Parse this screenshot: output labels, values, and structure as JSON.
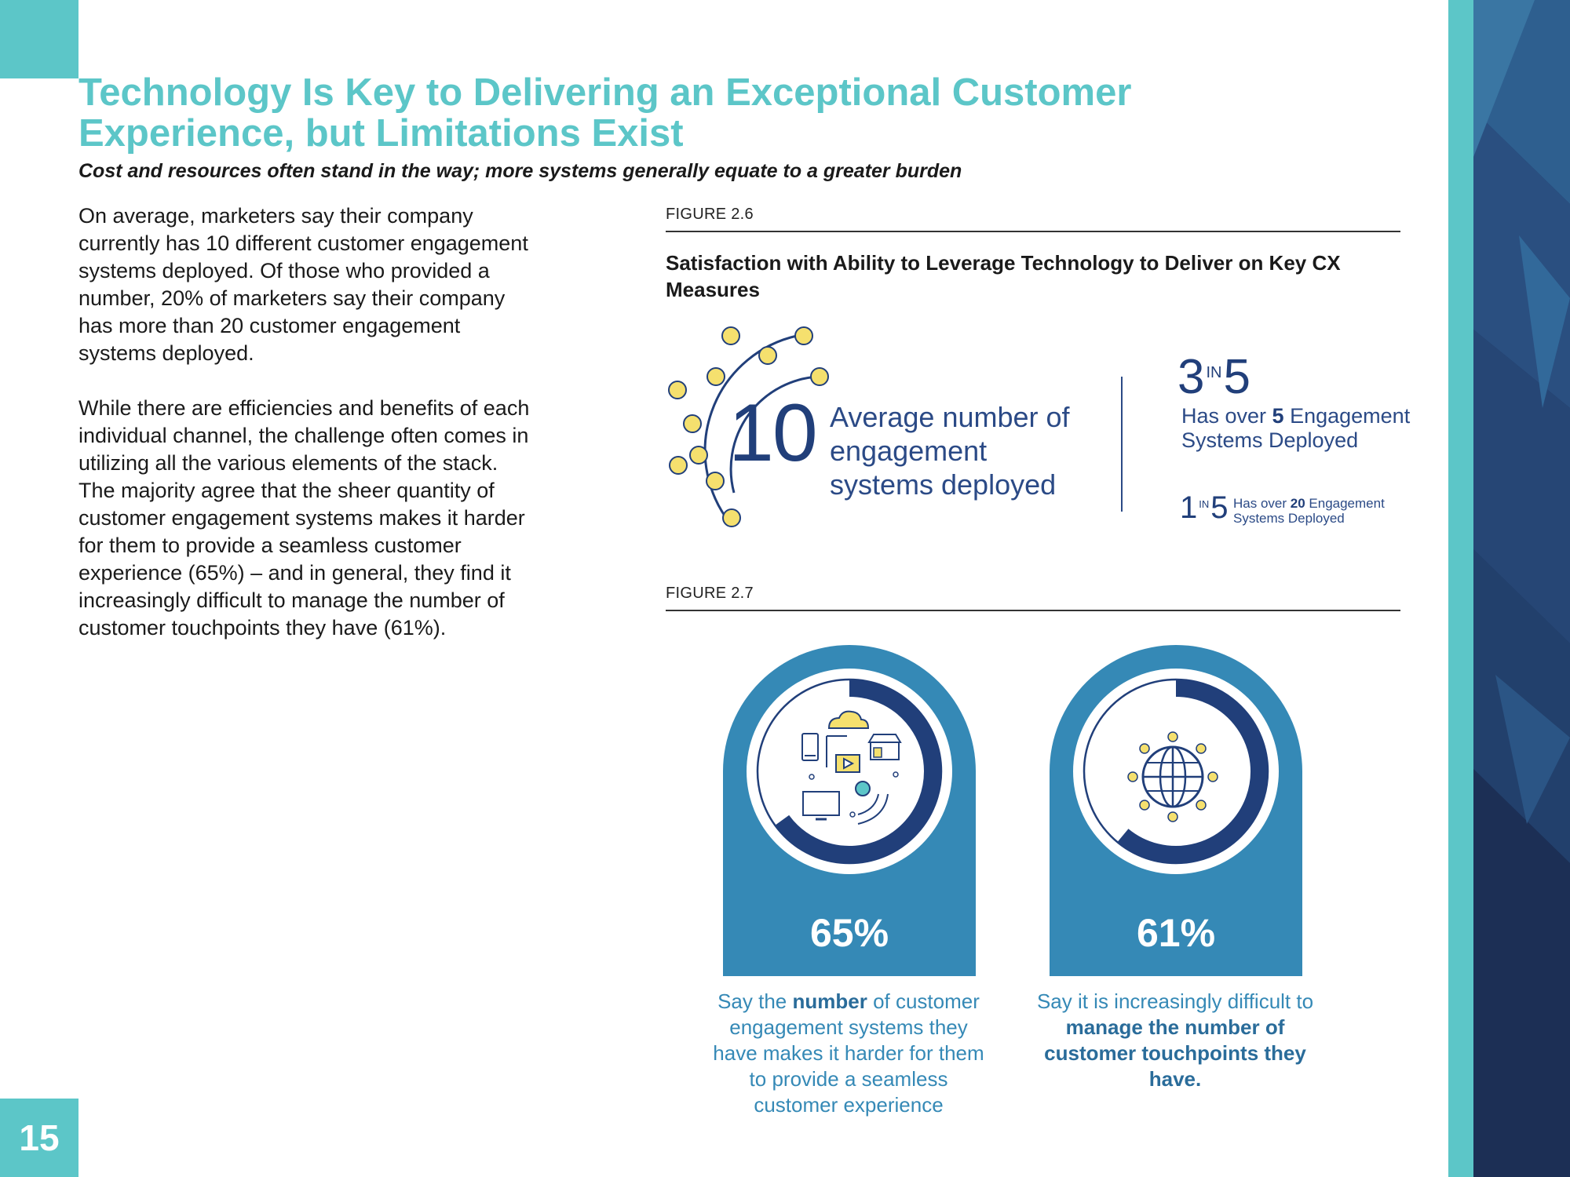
{
  "header": {
    "title": "Technology Is Key to Delivering an Exceptional Customer Experience, but Limitations Exist",
    "subtitle": "Cost and resources often stand in the way; more systems generally equate to a greater burden"
  },
  "body": {
    "paragraph1": "On average, marketers say their company currently has 10 different customer engagement systems deployed. Of those who provided a number, 20% of marketers say their company has more than 20 customer engagement systems deployed.",
    "paragraph2": "While there are efficiencies and benefits of each individual channel, the challenge often comes in utilizing all the various elements of the stack. The majority agree that the sheer quantity of customer engagement systems makes it harder for them to provide a seamless customer experience (65%) – and in general, they find it increasingly difficult to manage the number of customer touchpoints they have (61%)."
  },
  "figure26": {
    "label": "FIGURE 2.6",
    "title": "Satisfaction with Ability to Leverage Technology to Deliver on Key CX Measures",
    "average_value": "10",
    "average_text": "Average number of engagement systems deployed",
    "stat_a": {
      "numerator": "3",
      "in": "IN",
      "denominator": "5",
      "prefix": "Has over ",
      "bold": "5",
      "suffix": " Engagement Systems Deployed"
    },
    "stat_b": {
      "numerator": "1",
      "in": "IN",
      "denominator": "5",
      "prefix": "Has over ",
      "bold": "20",
      "suffix": " Engagement Systems Deployed"
    }
  },
  "figure27": {
    "label": "FIGURE 2.7",
    "items": [
      {
        "percent": "65%",
        "fraction": 0.65,
        "caption_pre": "Say the ",
        "caption_bold": "number",
        "caption_post": " of customer engagement systems they have makes it harder for them to provide a seamless customer experience"
      },
      {
        "percent": "61%",
        "fraction": 0.61,
        "caption_pre": "Say it is increasingly difficult to ",
        "caption_bold": "manage the number of customer touchpoints they have.",
        "caption_post": ""
      }
    ]
  },
  "footer": {
    "page_number": "15"
  },
  "colors": {
    "teal": "#5cc6c8",
    "navy": "#213f7a",
    "blue": "#3589b6",
    "yellow": "#f5e06e"
  }
}
